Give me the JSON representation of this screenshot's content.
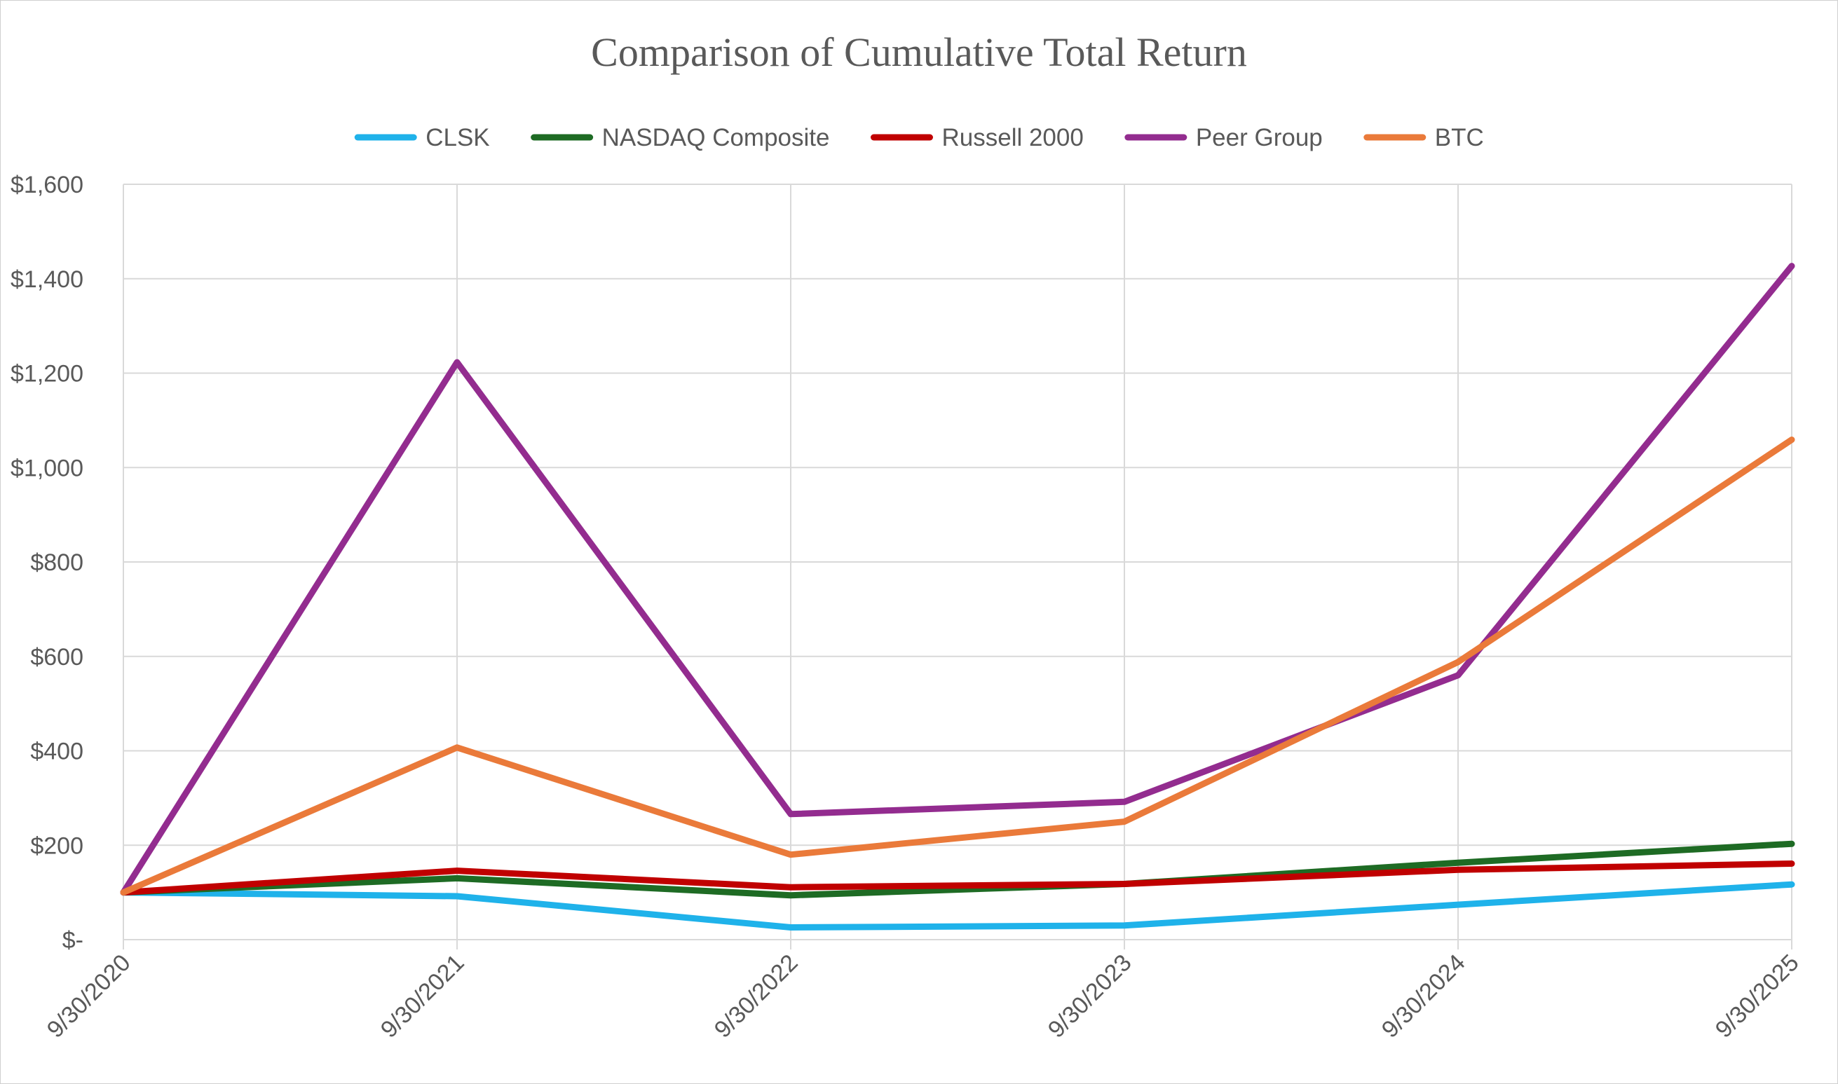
{
  "chart_data": {
    "type": "line",
    "title": "Comparison of Cumulative Total Return",
    "xlabel": "",
    "ylabel": "",
    "categories": [
      "9/30/2020",
      "9/30/2021",
      "9/30/2022",
      "9/30/2023",
      "9/30/2024",
      "9/30/2025"
    ],
    "ylim": [
      0,
      1600
    ],
    "yticks": [
      {
        "value": 0,
        "label": "$-"
      },
      {
        "value": 200,
        "label": "$200"
      },
      {
        "value": 400,
        "label": "$400"
      },
      {
        "value": 600,
        "label": "$600"
      },
      {
        "value": 800,
        "label": "$800"
      },
      {
        "value": 1000,
        "label": "$1,000"
      },
      {
        "value": 1200,
        "label": "$1,200"
      },
      {
        "value": 1400,
        "label": "$1,400"
      },
      {
        "value": 1600,
        "label": "$1,600"
      }
    ],
    "grid": true,
    "legend_position": "top",
    "series": [
      {
        "name": "CLSK",
        "color": "#1fb2ea",
        "values": [
          100,
          92,
          26,
          30,
          74,
          117
        ]
      },
      {
        "name": "NASDAQ Composite",
        "color": "#1e6b24",
        "values": [
          100,
          130,
          94,
          118,
          163,
          203
        ]
      },
      {
        "name": "Russell 2000",
        "color": "#c00000",
        "values": [
          100,
          146,
          111,
          118,
          148,
          161
        ]
      },
      {
        "name": "Peer Group",
        "color": "#932c8f",
        "values": [
          100,
          1223,
          266,
          292,
          560,
          1427
        ]
      },
      {
        "name": "BTC",
        "color": "#ea7a3a",
        "values": [
          100,
          407,
          180,
          250,
          588,
          1059
        ]
      }
    ]
  }
}
